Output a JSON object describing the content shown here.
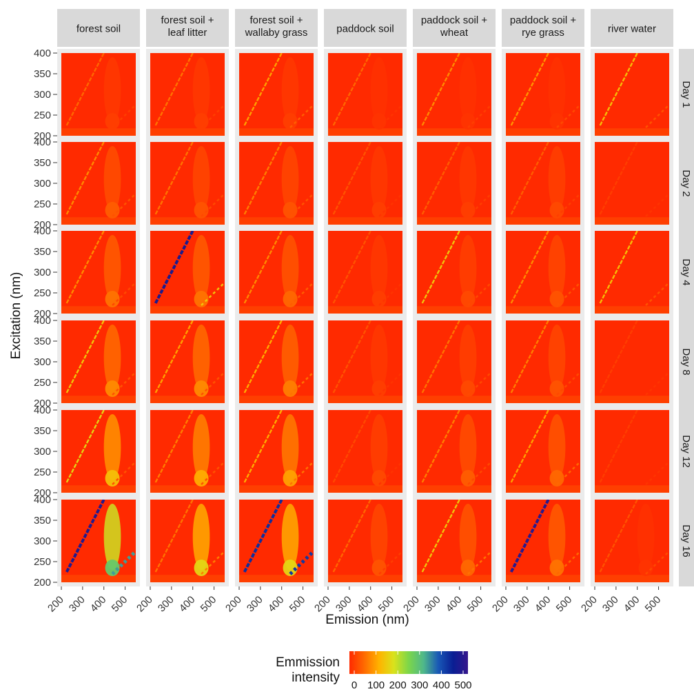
{
  "chart_data": {
    "type": "heatmap",
    "facet_columns": [
      "forest soil",
      "forest soil + leaf litter",
      "forest soil + wallaby grass",
      "paddock soil",
      "paddock soil + wheat",
      "paddock soil + rye grass",
      "river water"
    ],
    "facet_rows": [
      "Day 1",
      "Day 2",
      "Day 4",
      "Day 8",
      "Day 12",
      "Day 16"
    ],
    "xlabel": "Emission (nm)",
    "ylabel": "Excitation (nm)",
    "x_ticks": [
      200,
      300,
      400,
      500
    ],
    "y_ticks": [
      200,
      250,
      300,
      350,
      400
    ],
    "xlim": [
      200,
      550
    ],
    "ylim": [
      200,
      400
    ],
    "legend": {
      "title": "Emmission intensity",
      "ticks": [
        0,
        100,
        200,
        300,
        400,
        500
      ],
      "colors": [
        "#ff2a00",
        "#ff6a00",
        "#ffb300",
        "#d9e21c",
        "#7cd64a",
        "#4fb88a",
        "#1858b6",
        "#0a1e93",
        "#35168c"
      ],
      "placement": "bottom"
    },
    "rayleigh_intensity": [
      [
        60,
        70,
        110,
        60,
        90,
        100,
        140
      ],
      [
        90,
        70,
        80,
        40,
        50,
        50,
        20
      ],
      [
        90,
        460,
        90,
        40,
        150,
        90,
        140
      ],
      [
        150,
        110,
        120,
        40,
        70,
        80,
        20
      ],
      [
        170,
        80,
        120,
        30,
        80,
        110,
        20
      ],
      [
        470,
        70,
        420,
        60,
        150,
        480,
        40
      ]
    ],
    "humic_peak_intensity": [
      [
        20,
        20,
        20,
        10,
        10,
        10,
        0
      ],
      [
        50,
        40,
        40,
        20,
        20,
        30,
        0
      ],
      [
        70,
        70,
        60,
        20,
        30,
        40,
        0
      ],
      [
        90,
        90,
        80,
        20,
        30,
        40,
        0
      ],
      [
        140,
        120,
        110,
        30,
        50,
        60,
        0
      ],
      [
        280,
        170,
        170,
        40,
        60,
        70,
        10
      ]
    ],
    "second_order_intensity": [
      [
        20,
        20,
        50,
        10,
        20,
        30,
        40
      ],
      [
        40,
        30,
        40,
        10,
        20,
        20,
        10
      ],
      [
        30,
        150,
        50,
        10,
        30,
        40,
        40
      ],
      [
        40,
        40,
        70,
        10,
        30,
        30,
        10
      ],
      [
        40,
        40,
        70,
        10,
        30,
        60,
        10
      ],
      [
        330,
        80,
        410,
        20,
        70,
        60,
        30
      ]
    ]
  }
}
